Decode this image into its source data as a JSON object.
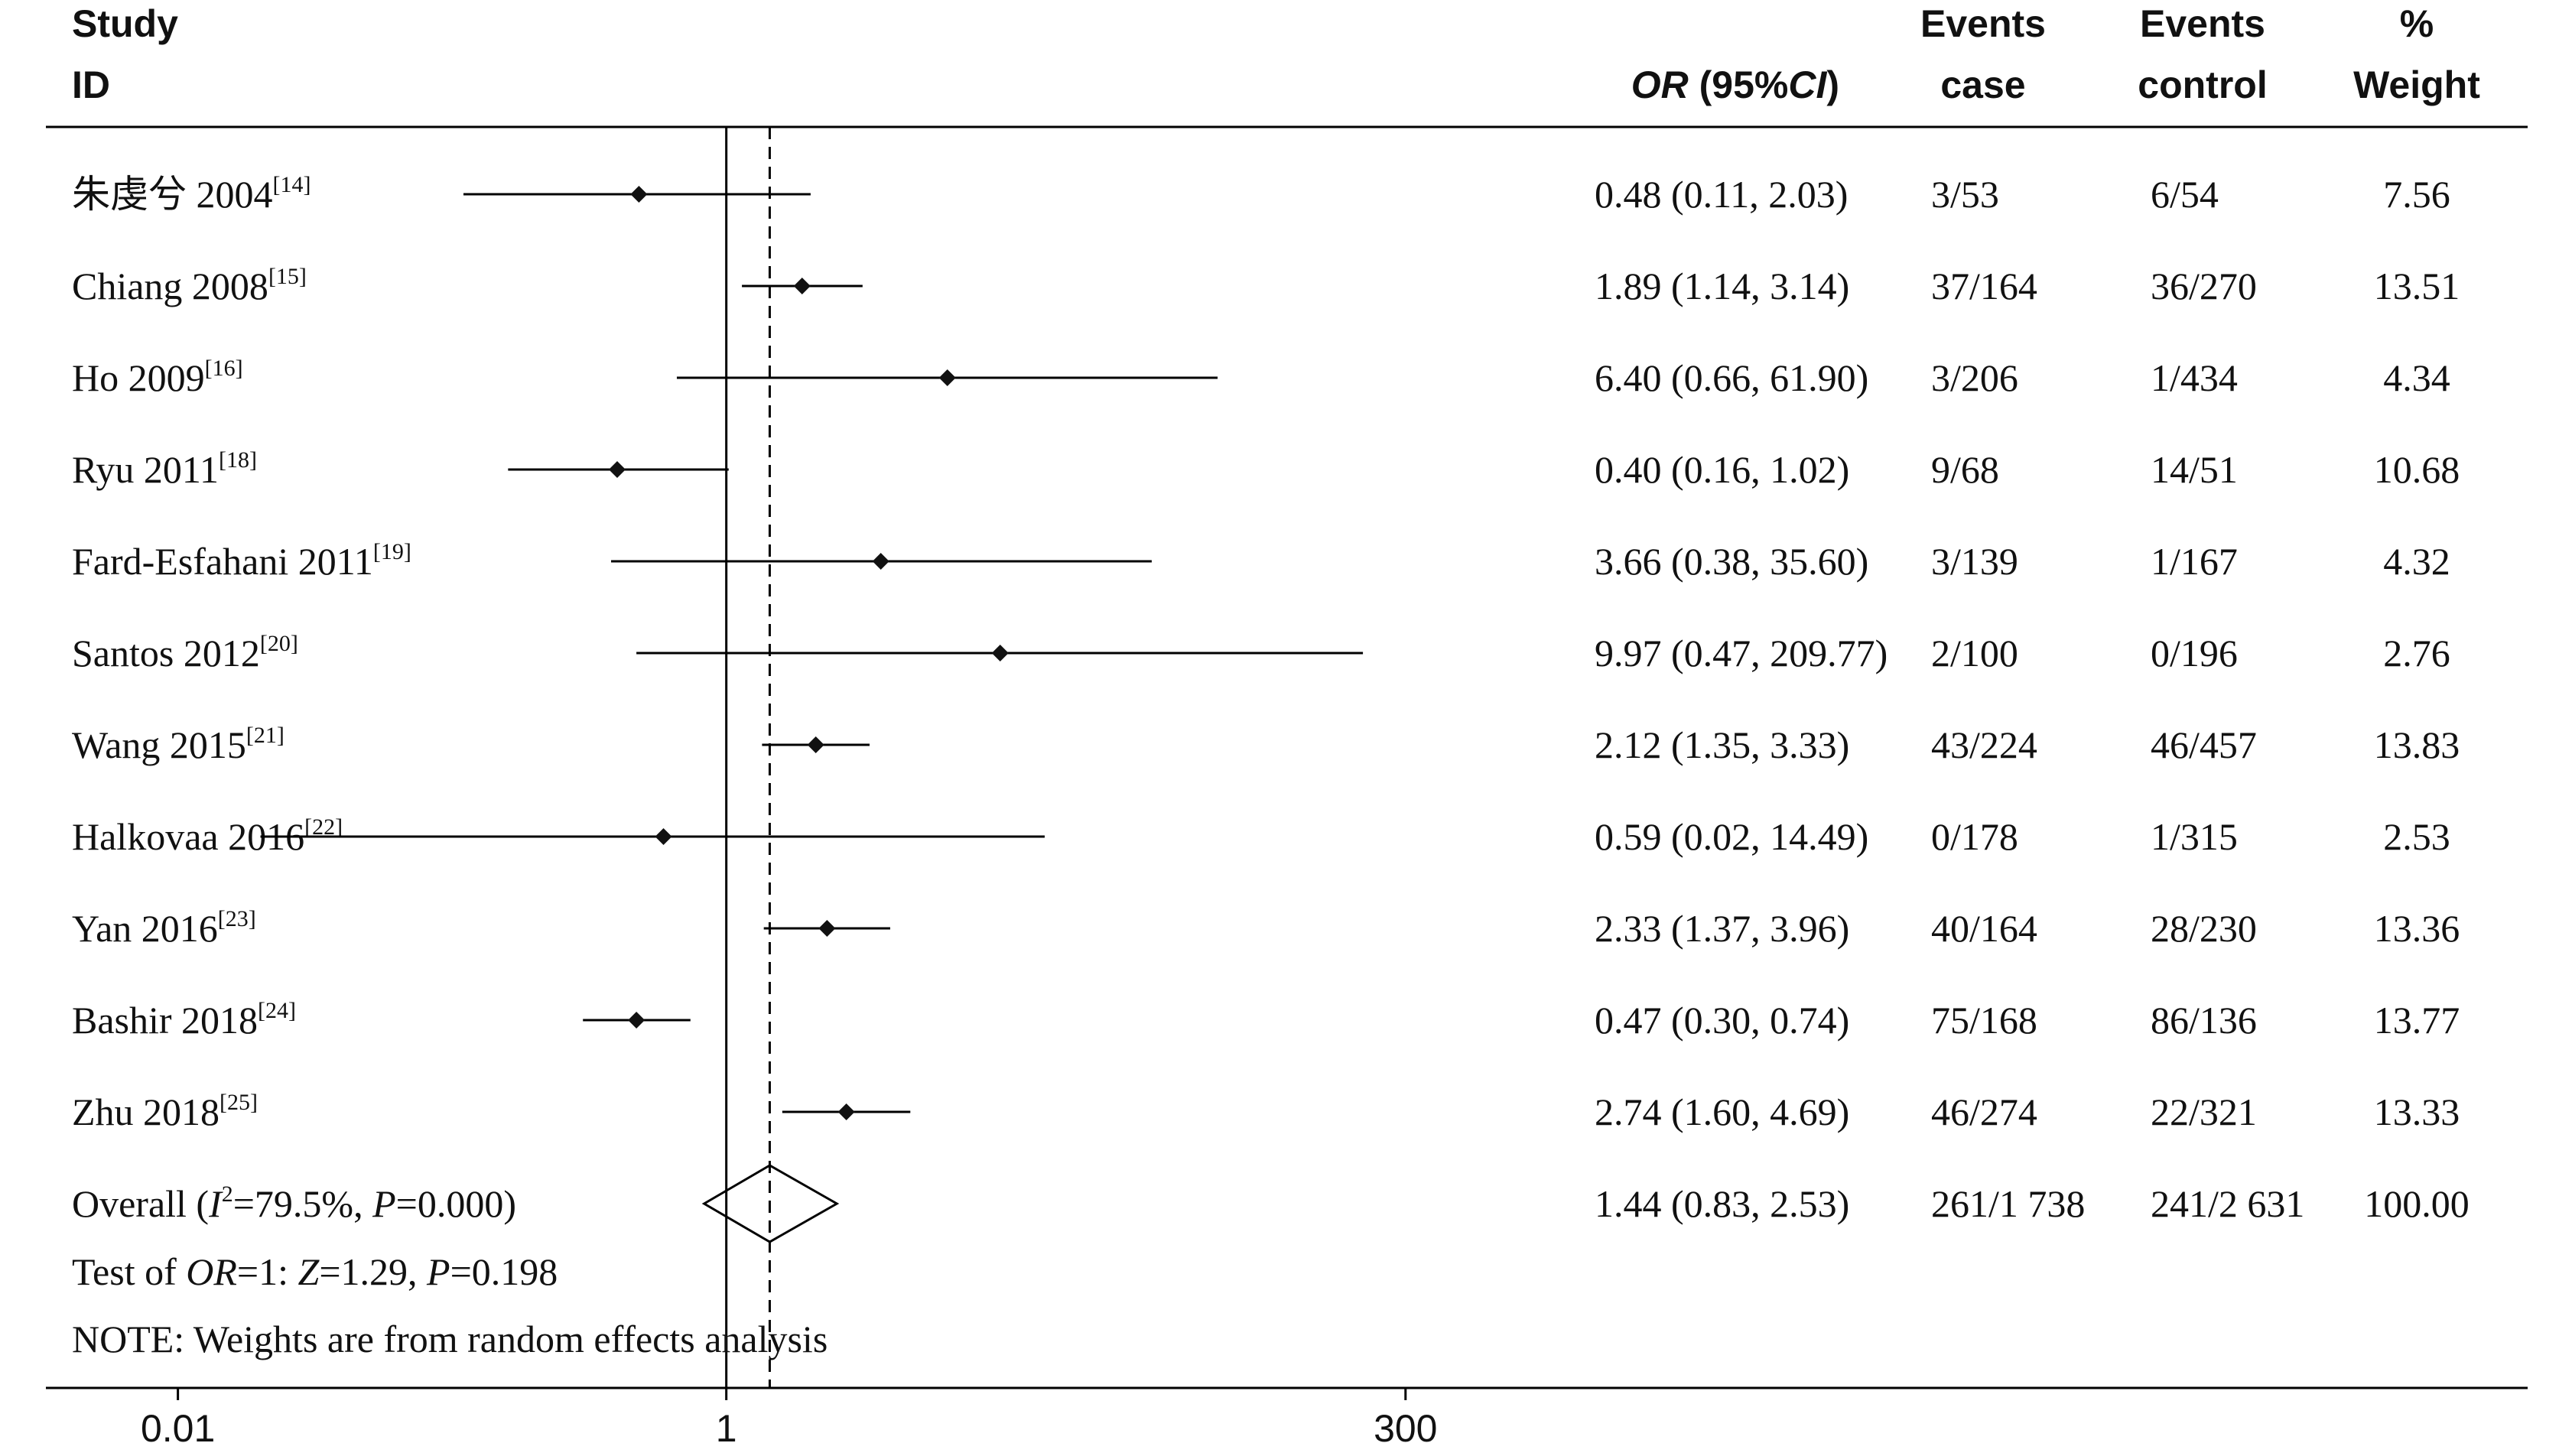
{
  "header": {
    "study_line1": "Study",
    "study_line2": "ID",
    "or_italic": "OR",
    "or_rest": " (95%",
    "ci_italic": "CI",
    "or_close": ")",
    "events_case_line1": "Events",
    "events_case_line2": "case",
    "events_control_line1": "Events",
    "events_control_line2": "control",
    "weight_line1": "%",
    "weight_line2": "Weight"
  },
  "chart_data": {
    "type": "forest",
    "scale": "log",
    "xlim": [
      0.0033,
      1250
    ],
    "xticks": [
      {
        "value": 0.01,
        "label": "0.01"
      },
      {
        "value": 1,
        "label": "1"
      },
      {
        "value": 300,
        "label": "300"
      }
    ],
    "null_line": 1,
    "overall_line": 1.44,
    "studies": [
      {
        "name": "朱虔兮 2004",
        "ref": "[14]",
        "or": 0.48,
        "lo": 0.11,
        "hi": 2.03,
        "ci_text": "0.48 (0.11, 2.03)",
        "case": "3/53",
        "control": "6/54",
        "weight": "7.56"
      },
      {
        "name": "Chiang 2008",
        "ref": "[15]",
        "or": 1.89,
        "lo": 1.14,
        "hi": 3.14,
        "ci_text": "1.89 (1.14, 3.14)",
        "case": "37/164",
        "control": "36/270",
        "weight": "13.51"
      },
      {
        "name": "Ho 2009",
        "ref": "[16]",
        "or": 6.4,
        "lo": 0.66,
        "hi": 61.9,
        "ci_text": "6.40 (0.66, 61.90)",
        "case": "3/206",
        "control": "1/434",
        "weight": "4.34"
      },
      {
        "name": "Ryu 2011",
        "ref": "[18]",
        "or": 0.4,
        "lo": 0.16,
        "hi": 1.02,
        "ci_text": "0.40 (0.16, 1.02)",
        "case": "9/68",
        "control": "14/51",
        "weight": "10.68"
      },
      {
        "name": "Fard-Esfahani 2011",
        "ref": "[19]",
        "or": 3.66,
        "lo": 0.38,
        "hi": 35.6,
        "ci_text": "3.66 (0.38, 35.60)",
        "case": "3/139",
        "control": "1/167",
        "weight": "4.32"
      },
      {
        "name": "Santos 2012",
        "ref": "[20]",
        "or": 9.97,
        "lo": 0.47,
        "hi": 209.77,
        "ci_text": "9.97 (0.47, 209.77)",
        "case": "2/100",
        "control": "0/196",
        "weight": "2.76"
      },
      {
        "name": "Wang 2015",
        "ref": "[21]",
        "or": 2.12,
        "lo": 1.35,
        "hi": 3.33,
        "ci_text": "2.12 (1.35, 3.33)",
        "case": "43/224",
        "control": "46/457",
        "weight": "13.83"
      },
      {
        "name": "Halkovaa 2016",
        "ref": "[22]",
        "or": 0.59,
        "lo": 0.02,
        "hi": 14.49,
        "ci_text": "0.59 (0.02, 14.49)",
        "case": "0/178",
        "control": "1/315",
        "weight": "2.53"
      },
      {
        "name": "Yan 2016",
        "ref": "[23]",
        "or": 2.33,
        "lo": 1.37,
        "hi": 3.96,
        "ci_text": "2.33 (1.37, 3.96)",
        "case": "40/164",
        "control": "28/230",
        "weight": "13.36"
      },
      {
        "name": "Bashir 2018",
        "ref": "[24]",
        "or": 0.47,
        "lo": 0.3,
        "hi": 0.74,
        "ci_text": "0.47 (0.30, 0.74)",
        "case": "75/168",
        "control": "86/136",
        "weight": "13.77"
      },
      {
        "name": "Zhu 2018",
        "ref": "[25]",
        "or": 2.74,
        "lo": 1.6,
        "hi": 4.69,
        "ci_text": "2.74 (1.60, 4.69)",
        "case": "46/274",
        "control": "22/321",
        "weight": "13.33"
      }
    ],
    "overall": {
      "label_prefix": "Overall  (",
      "i2_letter": "I",
      "i2_sup": "2",
      "i2_value": "=79.5%, ",
      "p_letter": "P",
      "p_value": "=0.000)",
      "or": 1.44,
      "lo": 0.83,
      "hi": 2.53,
      "ci_text": "1.44 (0.83, 2.53)",
      "case": "261/1 738",
      "control": "241/2 631",
      "weight": "100.00"
    },
    "test": {
      "prefix": "Test of ",
      "or_italic": "OR",
      "mid": "=1: ",
      "z_letter": "Z",
      "z_value": "=1.29, ",
      "p_letter": "P",
      "p_value": "=0.198"
    },
    "note": "NOTE: Weights are from random effects analysis"
  }
}
